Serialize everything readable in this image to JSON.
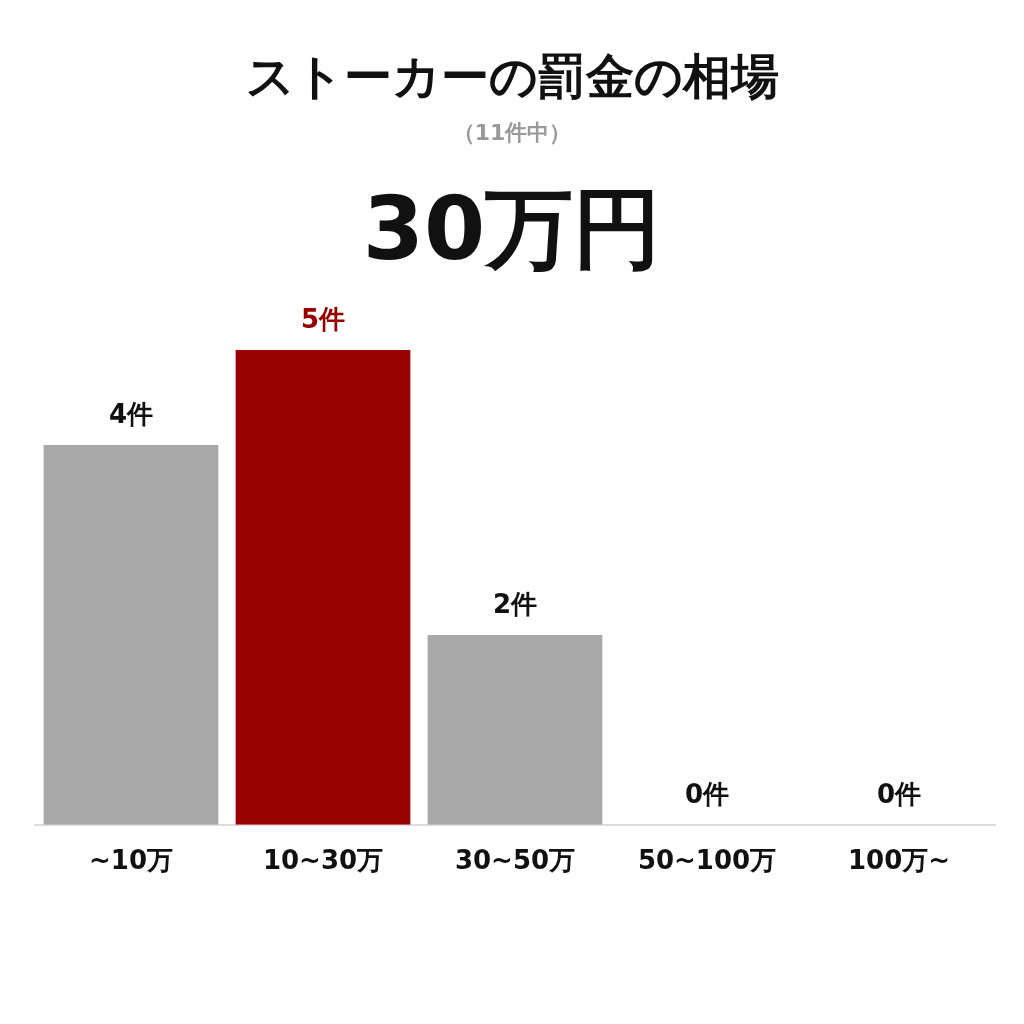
{
  "chart_data": {
    "type": "bar",
    "title": "ストーカーの罰金の相場",
    "subtitle": "（11件中）",
    "annotations": [
      "30万円"
    ],
    "categories": [
      "~10万",
      "10~30万",
      "30~50万",
      "50~100万",
      "100万~"
    ],
    "values": [
      4,
      5,
      2,
      0,
      0
    ],
    "colors": [
      "#a9a9a9",
      "#990000",
      "#a9a9a9",
      "#a9a9a9",
      "#a9a9a9"
    ],
    "value_labels": [
      "4件",
      "5件",
      "2件",
      "0件",
      "0件"
    ],
    "grid": false,
    "legend": false
  }
}
